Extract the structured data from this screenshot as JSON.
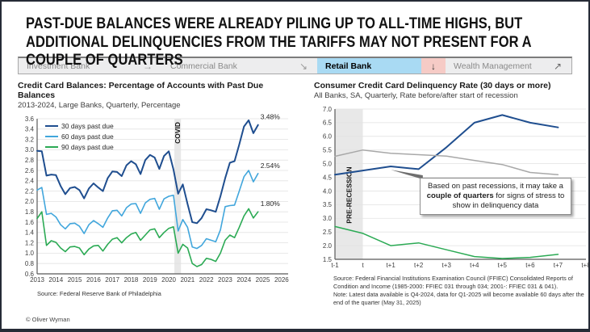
{
  "header": {
    "title": "PAST-DUE BALANCES WERE ALREADY PILING UP TO ALL-TIME HIGHS, BUT ADDITIONAL DELINQUENCIES FROM THE TARIFFS MAY NOT PRESENT FOR A COUPLE OF QUARTERS"
  },
  "nav": {
    "highlight_color": "#a9daf3",
    "alert_color": "#f6cbc6",
    "items": [
      {
        "label": "Investment Bank",
        "arrow": "→"
      },
      {
        "label": "Commercial Bank",
        "arrow": "↘"
      },
      {
        "label": "Retail Bank",
        "arrow": "↓"
      },
      {
        "label": "Wealth Management",
        "arrow": "↗"
      }
    ]
  },
  "chart_data": [
    {
      "type": "line",
      "title": "Credit Card Balances: Percentage of Accounts with Past Due Balances",
      "subtitle": "2013-2024, Large Banks, Quarterly, Percentage",
      "x_start": 2013,
      "x_step": 0.25,
      "xlim": [
        2013,
        2026.35
      ],
      "ylim": [
        0.6,
        3.6
      ],
      "yticks": [
        0.6,
        0.8,
        1.0,
        1.2,
        1.4,
        1.6,
        1.8,
        2.0,
        2.2,
        2.4,
        2.6,
        2.8,
        3.0,
        3.2,
        3.4,
        3.6
      ],
      "xticks": [
        2013,
        2014,
        2015,
        2016,
        2017,
        2018,
        2019,
        2020,
        2021,
        2022,
        2023,
        2024,
        2025,
        2026
      ],
      "legend": true,
      "grid": true,
      "bands": [
        {
          "from": 2020.3,
          "to": 2020.65,
          "label": "COVID",
          "label_pos": "top"
        }
      ],
      "series": [
        {
          "name": "30 days past due",
          "color": "#1f4e8f",
          "width": 2,
          "end_label": "3.48%",
          "values": [
            2.98,
            2.97,
            2.5,
            2.52,
            2.51,
            2.3,
            2.14,
            2.26,
            2.28,
            2.22,
            2.06,
            2.25,
            2.35,
            2.27,
            2.2,
            2.45,
            2.58,
            2.57,
            2.49,
            2.7,
            2.78,
            2.72,
            2.53,
            2.8,
            2.9,
            2.85,
            2.63,
            2.88,
            2.97,
            2.62,
            2.15,
            2.33,
            1.95,
            1.6,
            1.58,
            1.68,
            1.85,
            1.83,
            1.8,
            2.1,
            2.45,
            2.75,
            2.78,
            3.1,
            3.45,
            3.57,
            3.32,
            3.48
          ]
        },
        {
          "name": "60 days past due",
          "color": "#41a6dc",
          "width": 1.6,
          "end_label": "2.54%",
          "values": [
            2.22,
            2.27,
            1.75,
            1.77,
            1.7,
            1.55,
            1.47,
            1.57,
            1.58,
            1.52,
            1.38,
            1.55,
            1.63,
            1.57,
            1.5,
            1.68,
            1.82,
            1.83,
            1.72,
            1.88,
            1.95,
            1.96,
            1.77,
            1.97,
            2.04,
            2.06,
            1.85,
            2.05,
            2.1,
            2.12,
            1.43,
            1.65,
            1.5,
            1.12,
            1.09,
            1.15,
            1.28,
            1.25,
            1.22,
            1.45,
            1.9,
            1.92,
            1.93,
            2.2,
            2.48,
            2.6,
            2.38,
            2.54
          ]
        },
        {
          "name": "90 days past due",
          "color": "#2baa54",
          "width": 1.6,
          "end_label": "1.80%",
          "values": [
            1.67,
            1.8,
            1.15,
            1.24,
            1.21,
            1.1,
            1.03,
            1.12,
            1.13,
            1.1,
            0.97,
            1.08,
            1.14,
            1.15,
            1.04,
            1.17,
            1.27,
            1.3,
            1.2,
            1.3,
            1.37,
            1.4,
            1.25,
            1.35,
            1.45,
            1.47,
            1.3,
            1.4,
            1.48,
            1.51,
            1.0,
            1.17,
            1.1,
            0.8,
            0.74,
            0.78,
            0.9,
            0.88,
            0.84,
            1.0,
            1.25,
            1.35,
            1.3,
            1.5,
            1.72,
            1.86,
            1.68,
            1.8
          ]
        }
      ],
      "source": "Source: Federal Reserve Bank of Philadelphia"
    },
    {
      "type": "line",
      "title": "Consumer Credit Card Delinquency Rate (30 days or more)",
      "subtitle": "All Banks, SA, Quarterly, Rate before/after start of recession",
      "x_labels": [
        "t-1",
        "t",
        "t+1",
        "t+2",
        "t+3",
        "t+4",
        "t+5",
        "t+6",
        "t+7",
        "t+8"
      ],
      "ylim": [
        1.5,
        7.0
      ],
      "yticks": [
        1.5,
        2.0,
        2.5,
        3.0,
        3.5,
        4.0,
        4.5,
        5.0,
        5.5,
        6.0,
        6.5,
        7.0
      ],
      "legend": false,
      "grid": true,
      "bands": [
        {
          "from": 0,
          "to": 1,
          "label": "PRE-RECESSION",
          "label_at": 3.85
        }
      ],
      "leader": {
        "from": [
          2,
          4.78
        ],
        "to": [
          3.15,
          4.5
        ]
      },
      "series": [
        {
          "name": "blue recession path",
          "color": "#1f4e8f",
          "width": 2,
          "values": [
            4.6,
            4.75,
            4.9,
            4.8,
            5.6,
            6.5,
            6.78,
            6.5,
            6.33
          ]
        },
        {
          "name": "gray recession path",
          "color": "#a8a8a8",
          "width": 1.5,
          "values": [
            5.27,
            5.5,
            5.38,
            5.33,
            5.28,
            5.12,
            4.97,
            4.68,
            4.6
          ]
        },
        {
          "name": "green recession path",
          "color": "#2baa54",
          "width": 1.5,
          "values": [
            2.7,
            2.45,
            2.0,
            2.1,
            1.85,
            1.6,
            1.53,
            1.57,
            1.68
          ]
        }
      ],
      "annotation": {
        "pre": "Based on past recessions, it may take a ",
        "bold": "couple of quarters",
        "post": " for signs of stress to show in delinquency data"
      },
      "source_lines": [
        "Source: Federal Financial Institutions Examination Council (FFIEC) Consolidated Reports of Condition and Income (1985-2000: FFIEC 031 through 034; 2001-: FFIEC 031 & 041).",
        "Note: Latest data available is Q4-2024, data for Q1-2025 will become available 60 days after the end of the quarter (May 31, 2025)"
      ]
    }
  ],
  "footer": {
    "copyright": "© Oliver Wyman"
  }
}
